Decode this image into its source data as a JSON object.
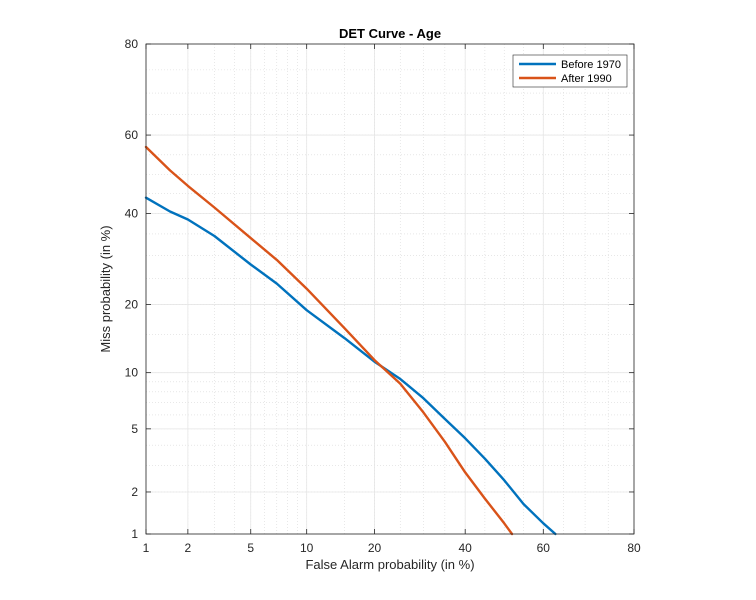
{
  "chart_data": {
    "type": "line",
    "title": "DET Curve - Age",
    "xlabel": "False Alarm probability (in %)",
    "ylabel": "Miss probability (in %)",
    "x_scale": "probit",
    "y_scale": "probit",
    "xlim": [
      1,
      80
    ],
    "ylim": [
      1,
      80
    ],
    "x_ticks": [
      1,
      2,
      5,
      10,
      20,
      40,
      60,
      80
    ],
    "y_ticks": [
      1,
      2,
      5,
      10,
      20,
      40,
      60,
      80
    ],
    "grid": true,
    "legend_position": "top-right",
    "series": [
      {
        "name": "Before 1970",
        "color": "#0072BD",
        "x": [
          1,
          1.5,
          2,
          3,
          5,
          7,
          10,
          15,
          20,
          25,
          30,
          35,
          40,
          45,
          50,
          55,
          60,
          63
        ],
        "y": [
          44,
          40.5,
          38.5,
          34.5,
          28,
          24,
          19,
          14.5,
          11.3,
          9.3,
          7.4,
          5.7,
          4.4,
          3.3,
          2.4,
          1.65,
          1.2,
          1
        ]
      },
      {
        "name": "After 1990",
        "color": "#D95319",
        "x": [
          1,
          1.5,
          2,
          3,
          5,
          7,
          10,
          15,
          20,
          25,
          30,
          35,
          40,
          45,
          50,
          52
        ],
        "y": [
          57,
          51,
          47,
          41.5,
          34,
          29,
          23,
          16,
          11.5,
          8.8,
          6.2,
          4.2,
          2.7,
          1.8,
          1.2,
          1
        ]
      }
    ]
  }
}
